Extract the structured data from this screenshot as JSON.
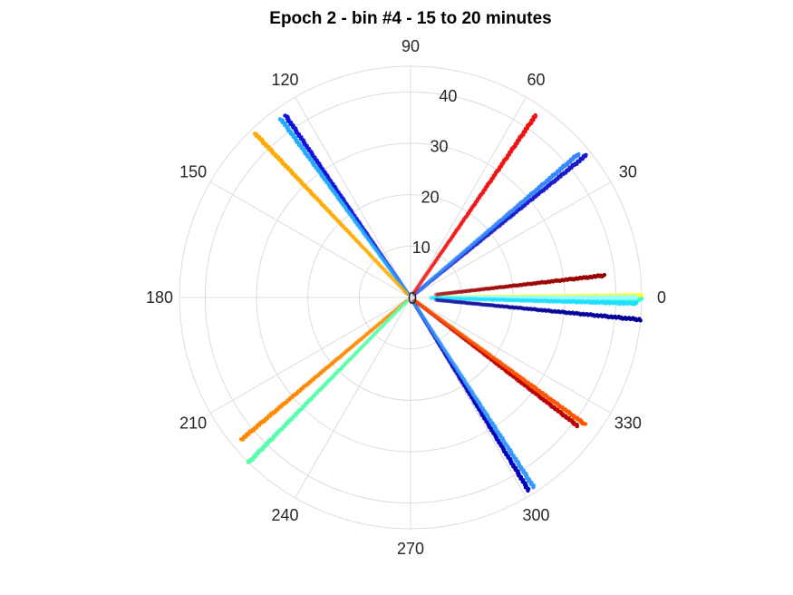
{
  "chart_data": {
    "type": "scatter",
    "coordinate_system": "polar",
    "title": "Epoch 2 - bin #4 - 15 to 20 minutes",
    "theta_unit": "degrees",
    "theta_ticks": [
      0,
      30,
      60,
      90,
      120,
      150,
      180,
      210,
      240,
      270,
      300,
      330
    ],
    "r_ticks": [
      0,
      10,
      20,
      30,
      40
    ],
    "rlim": [
      0,
      45
    ],
    "grid": true,
    "colormap": "jet",
    "rays": [
      {
        "theta": 0.5,
        "r_start": 4,
        "r_end": 45,
        "color": "#ffff33"
      },
      {
        "theta": -0.5,
        "r_start": 4,
        "r_end": 45,
        "color": "#33ffcc"
      },
      {
        "theta": 0.0,
        "r_start": 4,
        "r_end": 44,
        "color": "#99ffff"
      },
      {
        "theta": -1.5,
        "r_start": 4,
        "r_end": 44,
        "color": "#22ddff"
      },
      {
        "theta": 6.5,
        "r_start": 5,
        "r_end": 38,
        "color": "#990000"
      },
      {
        "theta": -5.5,
        "r_start": 5,
        "r_end": 45,
        "color": "#000099"
      },
      {
        "theta": 39.0,
        "r_start": 1,
        "r_end": 44,
        "color": "#1a1acc"
      },
      {
        "theta": 40.5,
        "r_start": 1,
        "r_end": 43,
        "color": "#3388ff"
      },
      {
        "theta": 55.5,
        "r_start": 1,
        "r_end": 43,
        "color": "#ee1111"
      },
      {
        "theta": 124.5,
        "r_start": 1,
        "r_end": 43,
        "color": "#1111dd"
      },
      {
        "theta": 126.0,
        "r_start": 1,
        "r_end": 43,
        "color": "#22aaff"
      },
      {
        "theta": 133.5,
        "r_start": 1,
        "r_end": 44,
        "color": "#ffaa00"
      },
      {
        "theta": 220.0,
        "r_start": 1,
        "r_end": 43,
        "color": "#ff8800"
      },
      {
        "theta": 225.5,
        "r_start": 1,
        "r_end": 45,
        "color": "#55ffaa"
      },
      {
        "theta": 301.5,
        "r_start": 1,
        "r_end": 44,
        "color": "#0000bb"
      },
      {
        "theta": 303.0,
        "r_start": 1,
        "r_end": 44,
        "color": "#3399ff"
      },
      {
        "theta": 322.5,
        "r_start": 1,
        "r_end": 41,
        "color": "#bb0000"
      },
      {
        "theta": 324.0,
        "r_start": 1,
        "r_end": 42,
        "color": "#ff5500"
      }
    ]
  }
}
